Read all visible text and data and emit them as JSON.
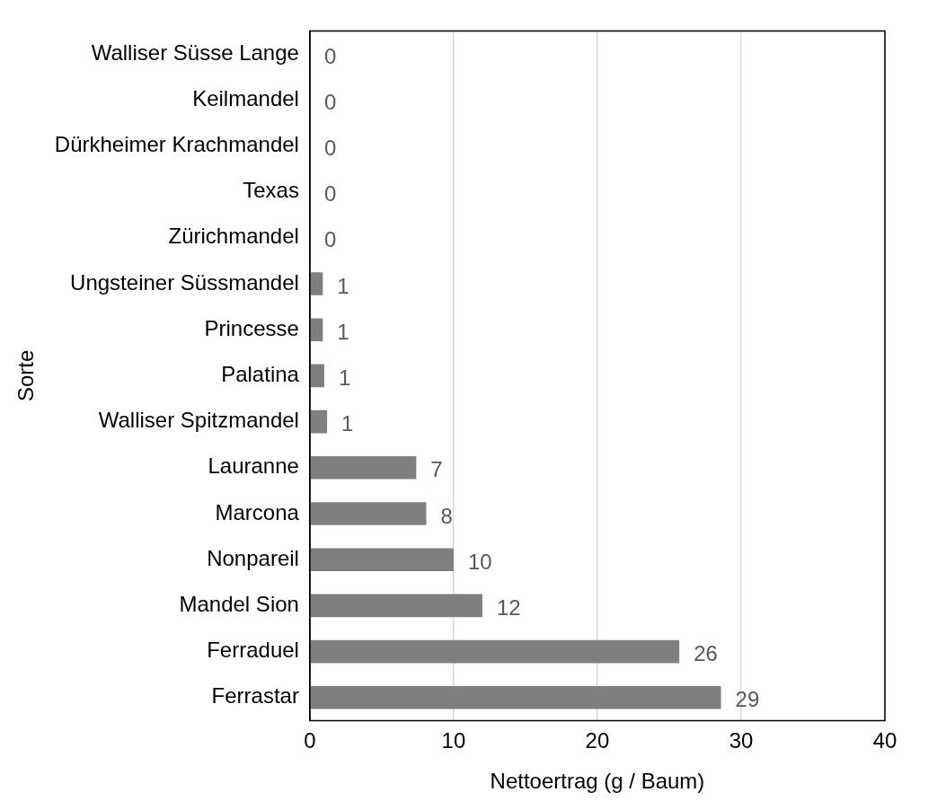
{
  "chart_data": {
    "type": "bar",
    "orientation": "horizontal",
    "xlabel": "Nettoertrag (g / Baum)",
    "ylabel": "Sorte",
    "categories": [
      "Walliser Süsse Lange",
      "Keilmandel",
      "Dürkheimer Krachmandel",
      "Texas",
      "Zürichmandel",
      "Ungsteiner Süssmandel",
      "Princesse",
      "Palatina",
      "Walliser Spitzmandel",
      "Lauranne",
      "Marcona",
      "Nonpareil",
      "Mandel Sion",
      "Ferraduel",
      "Ferrastar"
    ],
    "values": [
      0,
      0,
      0,
      0,
      0,
      0.9,
      0.9,
      1.0,
      1.2,
      7.4,
      8.1,
      10.0,
      12.0,
      25.7,
      28.6
    ],
    "value_labels": [
      "0",
      "0",
      "0",
      "0",
      "0",
      "1",
      "1",
      "1",
      "1",
      "7",
      "8",
      "10",
      "12",
      "26",
      "29"
    ],
    "color": "#7f7f7f",
    "xlim": [
      0,
      40
    ],
    "xticks": [
      0,
      10,
      20,
      30,
      40
    ],
    "grid": "x"
  }
}
